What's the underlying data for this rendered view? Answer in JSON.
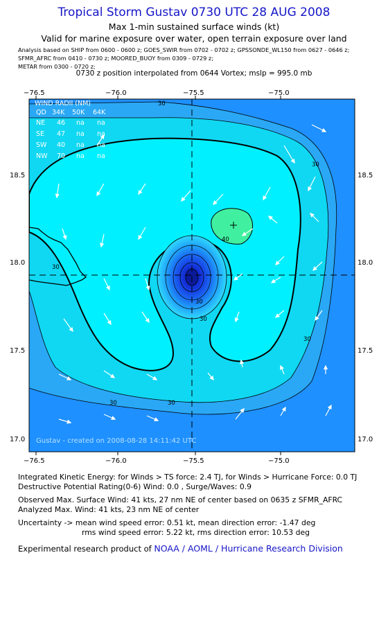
{
  "header": {
    "title": "Tropical Storm Gustav 0730 UTC 28 AUG 2008",
    "subtitle1": "Max 1-min sustained surface winds (kt)",
    "subtitle2": "Valid for marine exposure over water, open terrain exposure over land",
    "analysis_lines": [
      "Analysis based on  SHIP from 0600 - 0600 z;  GOES_SWIR from 0702 - 0702 z;  GPSSONDE_WL150 from 0627 - 0646 z;",
      "SFMR_AFRC from 0410 - 0730 z;  MOORED_BUOY from 0309 - 0729 z;",
      "METAR from 0300 - 0720 z;"
    ],
    "position_note": "0730 z position interpolated from 0644 Vortex; mslp = 995.0 mb"
  },
  "map": {
    "x_ticks": [
      "−76.5",
      "−76.0",
      "−75.5",
      "−75.0"
    ],
    "y_ticks": [
      "18.5",
      "18.0",
      "17.5",
      "17.0"
    ],
    "contour_labels": [
      "30",
      "30",
      "30",
      "30",
      "30",
      "40",
      "30",
      "30",
      "30"
    ],
    "credit": "Gustav - created on 2008-08-28 14:11:42 UTC",
    "center": {
      "lon": -75.52,
      "lat": 17.92
    },
    "wind_radii": {
      "title": "WIND RADII (NM)",
      "header": [
        "QD",
        "34K",
        "50K",
        "64K"
      ],
      "rows": [
        [
          "NE",
          "46",
          "na",
          "na"
        ],
        [
          "SE",
          "47",
          "na",
          "na"
        ],
        [
          "SW",
          "40",
          "na",
          "na"
        ],
        [
          "NW",
          "70",
          "na",
          "na"
        ]
      ]
    },
    "colors": {
      "background": "#1e90ff",
      "outer": "#2aa8f5",
      "mid": "#10d8f2",
      "inner": "#00f0ff",
      "max_area": "#40f0a0"
    }
  },
  "footer": {
    "lines": [
      "Integrated Kinetic Energy:  for Winds > TS force: 2.4 TJ,  for Winds > Hurricane Force: 0.0 TJ",
      "Destructive Potential Rating(0-6)  Wind: 0.0 , Surge/Waves: 0.9",
      "Observed Max. Surface Wind: 41 kts, 27 nm NE of center based on 0635 z SFMR_AFRC",
      "Analyzed Max. Wind: 41 kts, 23 nm NE of center",
      "Uncertainty -> mean wind speed error: 0.51 kt,   mean direction error:  -1.47 deg",
      "rms wind speed error: 5.22 kt,   rms direction error: 10.53 deg"
    ],
    "research_prefix": "Experimental research product of",
    "research_org": "NOAA / AOML / Hurricane Research Division"
  }
}
